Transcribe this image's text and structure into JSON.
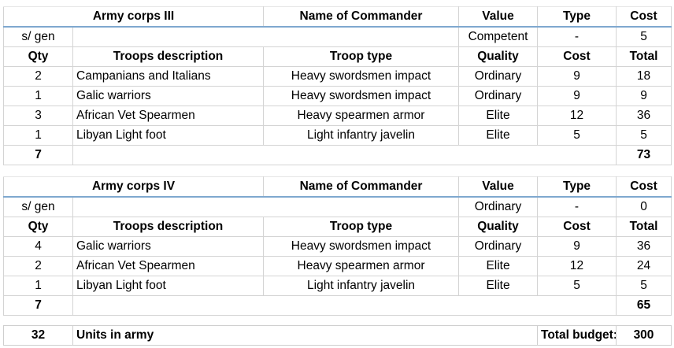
{
  "corps": [
    {
      "header": [
        "Army corps III",
        "Name of Commander",
        "Value",
        "Type",
        "Cost"
      ],
      "general": [
        "s/ gen",
        "",
        "Competent",
        "-",
        "5"
      ],
      "columns": [
        "Qty",
        "Troops description",
        "Troop type",
        "Quality",
        "Cost",
        "Total"
      ],
      "rows": [
        [
          "2",
          "Campanians and Italians",
          "Heavy swordsmen impact",
          "Ordinary",
          "9",
          "18"
        ],
        [
          "1",
          "Galic warriors",
          "Heavy swordsmen impact",
          "Ordinary",
          "9",
          "9"
        ],
        [
          "3",
          "African Vet Spearmen",
          "Heavy spearmen armor",
          "Elite",
          "12",
          "36"
        ],
        [
          "1",
          "Libyan Light foot",
          "Light infantry javelin",
          "Elite",
          "5",
          "5"
        ]
      ],
      "total_qty": "7",
      "total_cost": "73"
    },
    {
      "header": [
        "Army corps IV",
        "Name of Commander",
        "Value",
        "Type",
        "Cost"
      ],
      "general": [
        "s/ gen",
        "",
        "Ordinary",
        "-",
        "0"
      ],
      "columns": [
        "Qty",
        "Troops description",
        "Troop type",
        "Quality",
        "Cost",
        "Total"
      ],
      "rows": [
        [
          "4",
          "Galic warriors",
          "Heavy swordsmen impact",
          "Ordinary",
          "9",
          "36"
        ],
        [
          "2",
          "African Vet Spearmen",
          "Heavy spearmen armor",
          "Elite",
          "12",
          "24"
        ],
        [
          "1",
          "Libyan Light foot",
          "Light infantry javelin",
          "Elite",
          "5",
          "5"
        ]
      ],
      "total_qty": "7",
      "total_cost": "65"
    }
  ],
  "summary": {
    "units": "32",
    "units_label": "Units in army",
    "budget_label": "Total budget:",
    "budget": "300"
  }
}
